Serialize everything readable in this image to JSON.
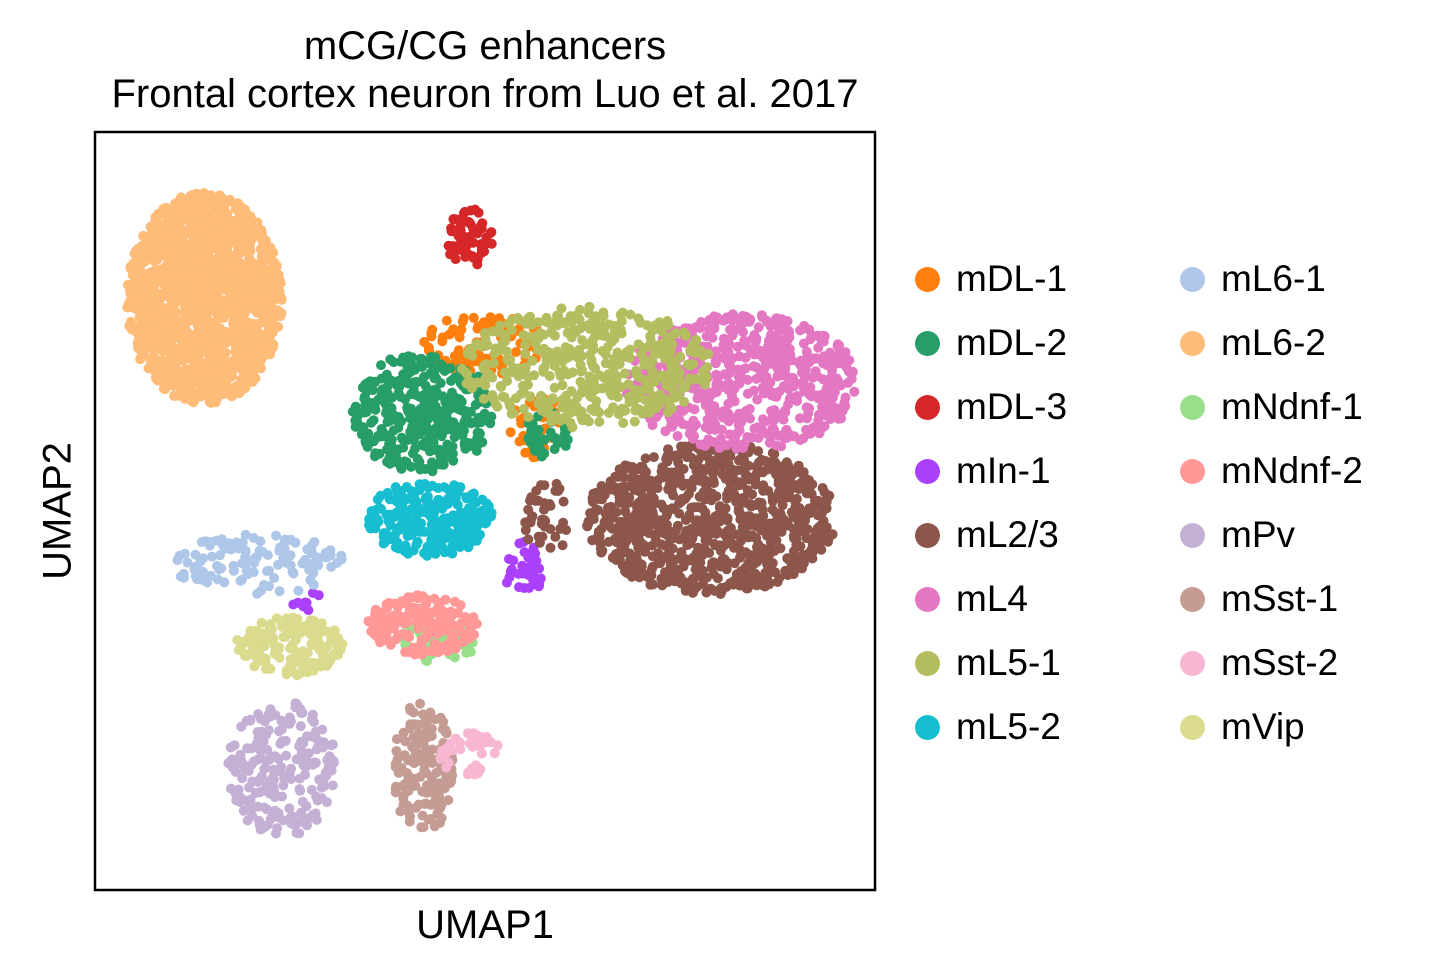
{
  "chart_data": {
    "type": "scatter",
    "title": [
      "mCG/CG enhancers",
      "Frontal cortex neuron from Luo et al. 2017"
    ],
    "xlabel": "UMAP1",
    "ylabel": "UMAP2",
    "ticks": "none",
    "grid": false,
    "legend_placement": "right, outside plot, 2 columns",
    "point_note": "Approximate cluster regions in UMAP embedding (arbitrary units, x 0-100, y 0-100)",
    "xlim": [
      0,
      100
    ],
    "ylim": [
      0,
      100
    ],
    "series": [
      {
        "name": "mDL-1",
        "color": "#ff7f0e",
        "clusters": [
          {
            "cx": 50,
            "cy": 72,
            "rx": 8,
            "ry": 4,
            "n": 90
          },
          {
            "cx": 57,
            "cy": 61,
            "rx": 4,
            "ry": 4,
            "n": 35
          }
        ]
      },
      {
        "name": "mDL-2",
        "color": "#279e68",
        "clusters": [
          {
            "cx": 42,
            "cy": 63,
            "rx": 9,
            "ry": 8,
            "n": 330
          },
          {
            "cx": 58,
            "cy": 60,
            "rx": 3,
            "ry": 3,
            "n": 40
          }
        ]
      },
      {
        "name": "mDL-3",
        "color": "#d62728",
        "clusters": [
          {
            "cx": 48,
            "cy": 86,
            "rx": 3,
            "ry": 4,
            "n": 60
          }
        ]
      },
      {
        "name": "mIn-1",
        "color": "#aa40fc",
        "clusters": [
          {
            "cx": 55,
            "cy": 42,
            "rx": 2.5,
            "ry": 4,
            "n": 35
          },
          {
            "cx": 27,
            "cy": 38,
            "rx": 2,
            "ry": 2,
            "n": 8
          }
        ]
      },
      {
        "name": "mL2/3",
        "color": "#8c564b",
        "clusters": [
          {
            "cx": 79,
            "cy": 49,
            "rx": 16,
            "ry": 10,
            "n": 850
          },
          {
            "cx": 58,
            "cy": 49,
            "rx": 3,
            "ry": 5,
            "n": 40
          }
        ]
      },
      {
        "name": "mL4",
        "color": "#e377c2",
        "clusters": [
          {
            "cx": 83,
            "cy": 67,
            "rx": 15,
            "ry": 9,
            "n": 560
          }
        ]
      },
      {
        "name": "mL5-1",
        "color": "#b5bd61",
        "clusters": [
          {
            "cx": 63,
            "cy": 69,
            "rx": 16,
            "ry": 8,
            "n": 440
          }
        ]
      },
      {
        "name": "mL5-2",
        "color": "#17becf",
        "clusters": [
          {
            "cx": 43,
            "cy": 49,
            "rx": 8,
            "ry": 5,
            "n": 240
          }
        ]
      },
      {
        "name": "mL6-1",
        "color": "#aec7e8",
        "clusters": [
          {
            "cx": 21,
            "cy": 43,
            "rx": 11,
            "ry": 4,
            "n": 120
          }
        ]
      },
      {
        "name": "mL6-2",
        "color": "#ffbb78",
        "clusters": [
          {
            "cx": 14,
            "cy": 78,
            "rx": 10,
            "ry": 14,
            "n": 1400
          }
        ]
      },
      {
        "name": "mNdnf-1",
        "color": "#98df8a",
        "clusters": [
          {
            "cx": 44,
            "cy": 33,
            "rx": 5,
            "ry": 3,
            "n": 70
          }
        ]
      },
      {
        "name": "mNdnf-2",
        "color": "#ff9896",
        "clusters": [
          {
            "cx": 42,
            "cy": 35,
            "rx": 7,
            "ry": 4,
            "n": 150
          }
        ]
      },
      {
        "name": "mPv",
        "color": "#c5b0d5",
        "clusters": [
          {
            "cx": 24,
            "cy": 16,
            "rx": 7,
            "ry": 9,
            "n": 210
          }
        ]
      },
      {
        "name": "mSst-1",
        "color": "#c49c94",
        "clusters": [
          {
            "cx": 42,
            "cy": 16,
            "rx": 4,
            "ry": 9,
            "n": 150
          }
        ]
      },
      {
        "name": "mSst-2",
        "color": "#f7b6d2",
        "clusters": [
          {
            "cx": 48,
            "cy": 18,
            "rx": 4,
            "ry": 3,
            "n": 40
          }
        ]
      },
      {
        "name": "mVip",
        "color": "#dbdb8d",
        "clusters": [
          {
            "cx": 25,
            "cy": 32,
            "rx": 7,
            "ry": 4,
            "n": 150
          }
        ]
      }
    ]
  }
}
